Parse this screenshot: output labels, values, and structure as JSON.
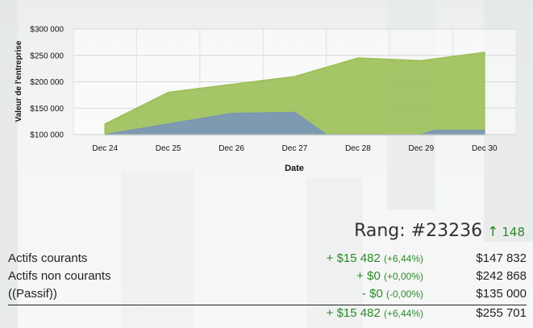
{
  "chart_data": {
    "type": "area",
    "xlabel": "Date",
    "ylabel": "Valeur de l'entreprise",
    "categories": [
      "Dec 24",
      "Dec 25",
      "Dec 26",
      "Dec 27",
      "Dec 28",
      "Dec 29",
      "Dec 30"
    ],
    "yticks": [
      "$100 000",
      "$150 000",
      "$200 000",
      "$250 000",
      "$300 000"
    ],
    "ylim": [
      100000,
      300000
    ],
    "grid": true,
    "series": [
      {
        "color": "#9bbf56",
        "points": [
          [
            0,
            120000
          ],
          [
            1,
            180000
          ],
          [
            2,
            195000
          ],
          [
            3,
            210000
          ],
          [
            4,
            245000
          ],
          [
            5,
            240000
          ],
          [
            6,
            255700
          ]
        ]
      },
      {
        "color": "#7a95b8",
        "points": [
          [
            0,
            100000
          ],
          [
            1,
            120000
          ],
          [
            2,
            140000
          ],
          [
            3,
            142000
          ],
          [
            3.5,
            100000
          ],
          [
            5,
            100000
          ],
          [
            5.2,
            108000
          ],
          [
            6,
            108000
          ]
        ]
      }
    ]
  },
  "rank": {
    "label": "Rang: #23236",
    "delta": "148",
    "icon": "arrow-up-icon"
  },
  "rows": [
    {
      "label": "Actifs courants",
      "change": "+ $15 482",
      "pct": "(+6,44%)",
      "value": "$147 832"
    },
    {
      "label": "Actifs non courants",
      "change": "+ $0",
      "pct": "(+0,00%)",
      "value": "$242 868"
    },
    {
      "label": "((Passif))",
      "change": "- $0",
      "pct": "(-0,00%)",
      "value": "$135 000"
    }
  ],
  "total": {
    "change": "+ $15 482",
    "pct": "(+6,44%)",
    "value": "$255 701"
  }
}
